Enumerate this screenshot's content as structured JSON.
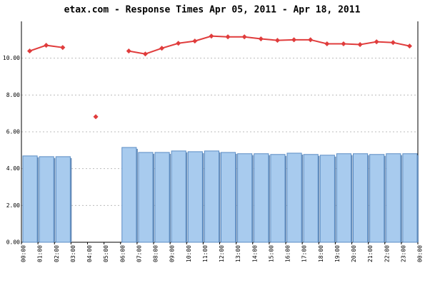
{
  "chart_data": {
    "type": "bar",
    "title": "etax.com - Response Times Apr 05, 2011 - Apr 18, 2011",
    "x_labels": [
      "00:00",
      "01:00",
      "02:00",
      "03:00",
      "04:00",
      "05:00",
      "06:00",
      "07:00",
      "08:00",
      "09:00",
      "10:00",
      "11:00",
      "12:00",
      "13:00",
      "14:00",
      "15:00",
      "16:00",
      "17:00",
      "18:00",
      "19:00",
      "20:00",
      "21:00",
      "22:00",
      "23:00",
      "00:00"
    ],
    "bars": {
      "color": "#a8cbee",
      "values": [
        4.69,
        4.65,
        4.65,
        null,
        null,
        null,
        5.15,
        4.88,
        4.88,
        4.96,
        4.92,
        4.96,
        4.88,
        4.81,
        4.81,
        4.77,
        4.84,
        4.77,
        4.73,
        4.81,
        4.81,
        4.77,
        4.81,
        4.81
      ]
    },
    "line": {
      "color": "#e03c3c",
      "values": [
        10.39,
        10.7,
        10.58,
        null,
        6.82,
        null,
        10.39,
        10.23,
        10.54,
        10.81,
        10.93,
        11.2,
        11.16,
        11.16,
        11.05,
        10.97,
        11.0,
        11.0,
        10.78,
        10.78,
        10.74,
        10.89,
        10.85,
        10.66
      ]
    },
    "ylim": [
      0,
      12
    ],
    "yticks": [
      {
        "value": 0,
        "label": "0.00"
      },
      {
        "value": 2,
        "label": "2.00"
      },
      {
        "value": 4,
        "label": "4.00"
      },
      {
        "value": 6,
        "label": "6.00"
      },
      {
        "value": 8,
        "label": "8.00"
      },
      {
        "value": 10,
        "label": "10.00"
      }
    ],
    "grid": true
  }
}
